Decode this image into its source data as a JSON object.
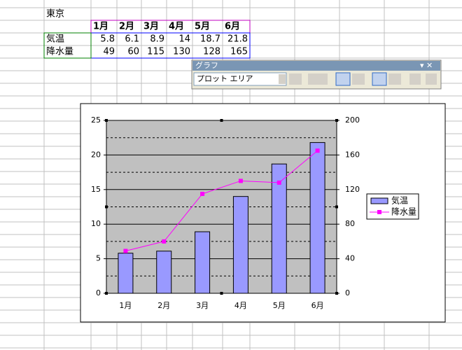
{
  "sheet": {
    "title": "東京",
    "columns": [
      "1月",
      "2月",
      "3月",
      "4月",
      "5月",
      "6月"
    ],
    "rows": [
      {
        "label": "気温",
        "values": [
          5.8,
          6.1,
          8.9,
          14,
          18.7,
          21.8
        ]
      },
      {
        "label": "降水量",
        "values": [
          49,
          60,
          115,
          130,
          128,
          165
        ]
      }
    ]
  },
  "toolbar": {
    "title": "グラフ",
    "selector": "プロット エリア"
  },
  "chart_data": {
    "type": "bar",
    "categories": [
      "1月",
      "2月",
      "3月",
      "4月",
      "5月",
      "6月"
    ],
    "series": [
      {
        "name": "気温",
        "color": "#9999ff",
        "values": [
          5.8,
          6.1,
          8.9,
          14,
          18.7,
          21.8
        ]
      },
      {
        "name": "降水量",
        "type": "line",
        "axis": "y2",
        "color": "#ff00ff",
        "values": [
          49,
          60,
          115,
          130,
          128,
          165
        ]
      }
    ],
    "ylim": [
      0,
      25
    ],
    "yticks": [
      0,
      5,
      10,
      15,
      20,
      25
    ],
    "y_minor_ticks": [
      2.5,
      7.5,
      12.5,
      17.5,
      22.5
    ],
    "y2lim": [
      0,
      200
    ],
    "y2ticks": [
      0,
      40,
      80,
      120,
      160,
      200
    ],
    "grid": true,
    "legend": "right",
    "plot_background": "#c0c0c0"
  }
}
